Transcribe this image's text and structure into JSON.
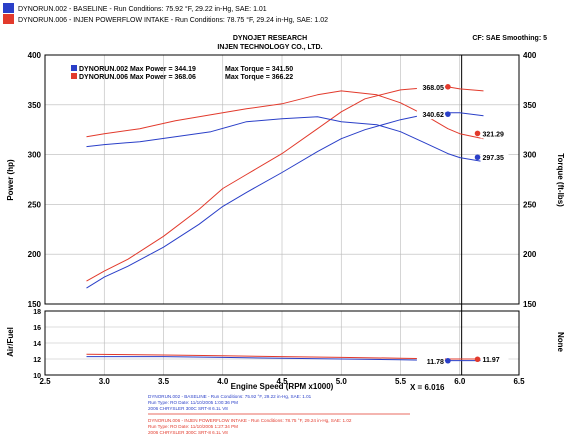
{
  "header": {
    "run1_label": "DYNORUN.002 - BASELINE  -  Run Conditions: 75.92 °F, 29.22 in-Hg, SAE: 1.01",
    "run2_label": "DYNORUN.006 - INJEN POWERFLOW INTAKE  -  Run Conditions: 78.75 °F, 29.24 in-Hg, SAE: 1.02",
    "title_line1": "DYNOJET RESEARCH",
    "title_line2": "INJEN TECHNOLOGY CO., LTD.",
    "settings": "CF: SAE  Smoothing: 5"
  },
  "legend": {
    "run1_power": "DYNORUN.002 Max Power = 344.19",
    "run1_torque": "Max Torque = 341.50",
    "run2_power": "DYNORUN.006 Max Power = 368.06",
    "run2_torque": "Max Torque = 366.22"
  },
  "colors": {
    "run1": "#2a3fc8",
    "run2": "#e23a2c",
    "grid": "#b9b9b9"
  },
  "chart_data": {
    "type": "line",
    "ylabel_left": "Power (hp)",
    "ylabel_right": "Torque (ft-lbs)",
    "ylabel_lower_left": "Air/Fuel",
    "ylabel_lower_right": "None",
    "xlabel": "Engine Speed (RPM x1000)",
    "xlim": [
      2.5,
      6.5
    ],
    "ylim_main": [
      150,
      400
    ],
    "ylim_afr": [
      10,
      18
    ],
    "x_ticks": [
      "2.5",
      "3.0",
      "3.5",
      "4.0",
      "4.5",
      "5.0",
      "5.5",
      "6.0",
      "6.5"
    ],
    "y_ticks_main": [
      "150",
      "200",
      "250",
      "300",
      "350",
      "400"
    ],
    "y_ticks_afr": [
      "10",
      "12",
      "14",
      "16",
      "18"
    ],
    "cursor": {
      "label": "X = 6.016",
      "x": 6.016
    },
    "series": [
      {
        "name": "DYNORUN.002 Power",
        "run": "run1",
        "x": [
          2.85,
          3.0,
          3.2,
          3.5,
          3.8,
          4.0,
          4.2,
          4.5,
          4.8,
          5.0,
          5.2,
          5.5,
          5.7,
          5.9,
          6.0,
          6.2
        ],
        "y": [
          166,
          177,
          188,
          207,
          230,
          248,
          262,
          282,
          303,
          316,
          325,
          335,
          340,
          342,
          342,
          339
        ]
      },
      {
        "name": "DYNORUN.006 Power",
        "run": "run2",
        "x": [
          2.85,
          3.0,
          3.2,
          3.5,
          3.8,
          4.0,
          4.2,
          4.5,
          4.8,
          5.0,
          5.2,
          5.5,
          5.7,
          5.8,
          5.9,
          6.0,
          6.2
        ],
        "y": [
          173,
          183,
          195,
          218,
          245,
          266,
          280,
          301,
          326,
          343,
          356,
          365,
          367,
          368,
          368,
          366,
          364
        ]
      },
      {
        "name": "DYNORUN.002 Torque",
        "run": "run1",
        "x": [
          2.85,
          3.0,
          3.3,
          3.6,
          3.9,
          4.2,
          4.5,
          4.8,
          5.0,
          5.3,
          5.5,
          5.7,
          5.9,
          6.0,
          6.2
        ],
        "y": [
          308,
          310,
          313,
          318,
          323,
          333,
          336,
          338,
          333,
          330,
          323,
          312,
          301,
          297,
          293
        ]
      },
      {
        "name": "DYNORUN.006 Torque",
        "run": "run2",
        "x": [
          2.85,
          3.0,
          3.3,
          3.6,
          3.9,
          4.2,
          4.5,
          4.8,
          5.0,
          5.3,
          5.5,
          5.7,
          5.9,
          6.0,
          6.2
        ],
        "y": [
          318,
          321,
          326,
          334,
          340,
          346,
          351,
          360,
          364,
          360,
          352,
          340,
          326,
          321,
          316
        ]
      },
      {
        "name": "DYNORUN.002 Air/Fuel",
        "run": "run1",
        "x": [
          2.85,
          3.5,
          4.0,
          4.5,
          5.0,
          5.5,
          5.9,
          6.2
        ],
        "y": [
          12.3,
          12.3,
          12.2,
          12.1,
          12.0,
          11.9,
          11.8,
          11.8
        ]
      },
      {
        "name": "DYNORUN.006 Air/Fuel",
        "run": "run2",
        "x": [
          2.85,
          3.5,
          4.0,
          4.5,
          5.0,
          5.5,
          5.9,
          6.2
        ],
        "y": [
          12.6,
          12.5,
          12.4,
          12.3,
          12.2,
          12.1,
          12.0,
          12.0
        ]
      }
    ],
    "annotations": [
      {
        "text": "368.05",
        "x": 5.9,
        "y": 368.05,
        "run": "run2",
        "side": "left"
      },
      {
        "text": "340.62",
        "x": 5.9,
        "y": 340.62,
        "run": "run1",
        "side": "left"
      },
      {
        "text": "321.29",
        "x": 6.15,
        "y": 321.29,
        "run": "run2",
        "side": "right"
      },
      {
        "text": "297.35",
        "x": 6.15,
        "y": 297.35,
        "run": "run1",
        "side": "right"
      }
    ],
    "afr_annotations": [
      {
        "text": "11.78",
        "x": 5.9,
        "y": 11.78,
        "run": "run1",
        "side": "left"
      },
      {
        "text": "11.97",
        "x": 6.15,
        "y": 11.97,
        "run": "run2",
        "side": "right"
      }
    ]
  },
  "footer": {
    "run1_line1": "DYNORUN.002 - BASELINE  -  Run Conditions: 75.92 °F, 29.22 in-Hg, SAE: 1.01",
    "run1_line2": "Run Type: RO  Date: 11/10/2005 1:00:36 PM",
    "run1_line3": "2006 CHRYSLER 300C SRT-8 6.1L V8",
    "run2_line1": "DYNORUN.006 - INJEN POWERFLOW INTAKE  -  Run Conditions: 78.75 °F, 29.24 in-Hg, SAE: 1.02",
    "run2_line2": "Run Type: RO  Date: 11/10/2005 1:27:34 PM",
    "run2_line3": "2006 CHRYSLER 300C SRT-8 6.1L V8"
  }
}
